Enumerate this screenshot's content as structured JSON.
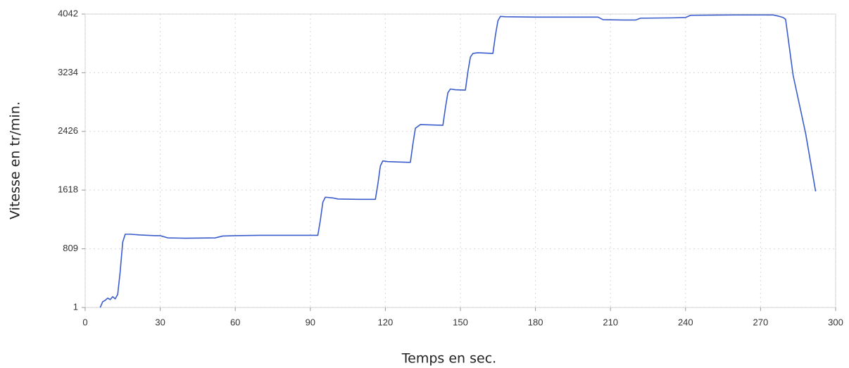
{
  "chart_data": {
    "type": "line",
    "x_label": "Temps en sec.",
    "y_label": "Vitesse en tr/min.",
    "xlim": [
      0,
      300
    ],
    "xticks": [
      0,
      30,
      60,
      90,
      120,
      150,
      180,
      210,
      240,
      270,
      300
    ],
    "ylim": [
      1,
      4042
    ],
    "yticks": [
      1,
      809,
      1618,
      2426,
      3234,
      4042
    ],
    "grid": true,
    "x": [
      6,
      7,
      8,
      9,
      10,
      11,
      12,
      13,
      14,
      15,
      16,
      18,
      22,
      28,
      30,
      33,
      40,
      52,
      55,
      60,
      70,
      80,
      90,
      93,
      94,
      95,
      96,
      99,
      101,
      110,
      116,
      117,
      118,
      119,
      121,
      129,
      130,
      131,
      132,
      134,
      143,
      144,
      145,
      146,
      148,
      152,
      153,
      154,
      155,
      157,
      163,
      164,
      165,
      166,
      168,
      180,
      200,
      205,
      207,
      215,
      220,
      222,
      235,
      240,
      242,
      260,
      275,
      277,
      279,
      280,
      283,
      288,
      292
    ],
    "series": [
      {
        "color": "#3a5ccc",
        "values": [
          1,
          80,
          100,
          130,
          110,
          150,
          120,
          180,
          500,
          900,
          1010,
          1010,
          1000,
          990,
          990,
          960,
          955,
          960,
          985,
          990,
          995,
          995,
          995,
          995,
          1200,
          1450,
          1520,
          1510,
          1495,
          1490,
          1490,
          1700,
          1950,
          2020,
          2010,
          2000,
          2000,
          2250,
          2470,
          2520,
          2510,
          2750,
          2960,
          3010,
          3000,
          2995,
          3250,
          3450,
          3500,
          3510,
          3500,
          3750,
          3950,
          4010,
          4005,
          4000,
          4000,
          4000,
          3965,
          3960,
          3960,
          3985,
          3990,
          3995,
          4025,
          4030,
          4030,
          4015,
          3995,
          3970,
          3200,
          2400,
          1600
        ]
      }
    ]
  }
}
